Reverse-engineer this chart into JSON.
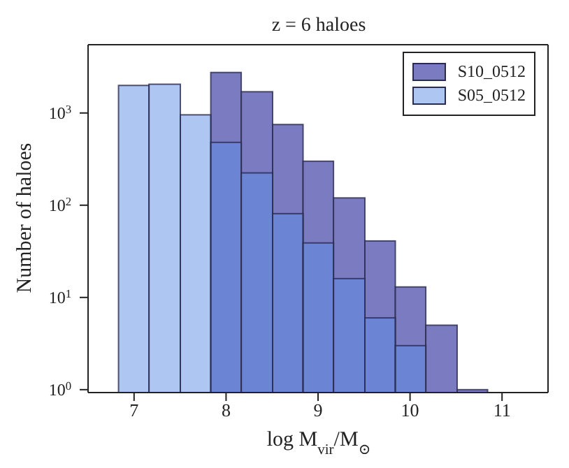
{
  "chart_data": {
    "type": "histogram",
    "title": "z = 6 haloes",
    "xlabel": "log M$_{vir}$/M$_{⊙}$",
    "ylabel": "Number of haloes",
    "bins": [
      6.83,
      7.16,
      7.5,
      7.83,
      8.16,
      8.5,
      8.83,
      9.16,
      9.5,
      9.83,
      10.16,
      10.5,
      10.83
    ],
    "series": [
      {
        "name": "S10_0512",
        "color": "#7b7bc2",
        "values": [
          null,
          null,
          null,
          2750,
          1700,
          750,
          300,
          120,
          41,
          13,
          5,
          1
        ]
      },
      {
        "name": "S05_0512",
        "color": "#aec6f2",
        "values": [
          1990,
          2050,
          955,
          480,
          224,
          81,
          39,
          16,
          6,
          3,
          null,
          null
        ]
      }
    ],
    "xlim": [
      6.5,
      11.5
    ],
    "xticks": [
      7,
      8,
      9,
      10,
      11
    ],
    "ylim": [
      0.93,
      5500
    ],
    "yticks": [
      {
        "value": 1,
        "label": "10$^{0}$"
      },
      {
        "value": 10,
        "label": "10$^{1}$"
      },
      {
        "value": 100,
        "label": "10$^{2}$"
      },
      {
        "value": 1000,
        "label": "10$^{3}$"
      }
    ],
    "log": "y",
    "grid": false,
    "legend": "top right"
  }
}
